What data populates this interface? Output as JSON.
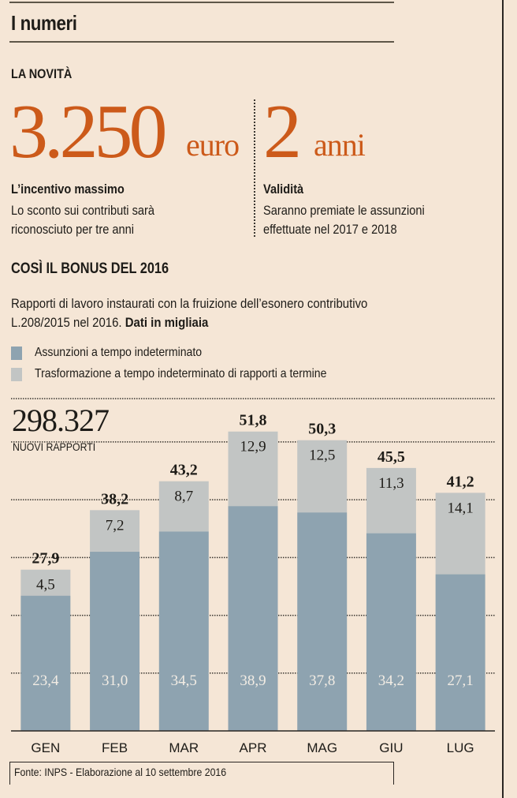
{
  "header": {
    "title": "I numeri",
    "kicker": "LA NOVITÀ"
  },
  "highlights": [
    {
      "value": "3.250",
      "unit": "euro",
      "heading": "L’incentivo massimo",
      "body": [
        "Lo sconto sui contributi sarà",
        "riconosciuto per tre anni"
      ]
    },
    {
      "value": "2",
      "unit": "anni",
      "heading": "Validità",
      "body": [
        "Saranno premiate le assunzioni",
        "effettuate nel 2017 e 2018"
      ]
    }
  ],
  "section": {
    "title": "COSÌ IL BONUS DEL 2016",
    "desc_line1": "Rapporti di lavoro instaurati con la fruizione dell’esonero contributivo",
    "desc_line2_plain": "L.208/2015 nel 2016. ",
    "desc_line2_bold": "Dati in migliaia"
  },
  "colors": {
    "accent": "#cc5a1a",
    "series1": "#8ea3b0",
    "series2": "#c2c5c4",
    "background": "#f5e6d6"
  },
  "total": {
    "value": "298.327",
    "label": "NUOVI RAPPORTI"
  },
  "source": "Fonte: INPS - Elaborazione al 10 settembre 2016",
  "chart_data": {
    "type": "bar",
    "stacked": true,
    "title": "COSÌ IL BONUS DEL 2016",
    "subtitle": "Rapporti di lavoro instaurati con la fruizione dell’esonero contributivo L.208/2015 nel 2016. Dati in migliaia",
    "categories": [
      "GEN",
      "FEB",
      "MAR",
      "APR",
      "MAG",
      "GIU",
      "LUG"
    ],
    "series": [
      {
        "name": "Assunzioni a tempo indeterminato",
        "color": "#8ea3b0",
        "values": [
          23.4,
          31.0,
          34.5,
          38.9,
          37.8,
          34.2,
          27.1
        ],
        "labels": [
          "23,4",
          "31,0",
          "34,5",
          "38,9",
          "37,8",
          "34,2",
          "27,1"
        ]
      },
      {
        "name": "Trasformazione a tempo indeterminato di rapporti a termine",
        "color": "#c2c5c4",
        "values": [
          4.5,
          7.2,
          8.7,
          12.9,
          12.5,
          11.3,
          14.1
        ],
        "labels": [
          "4,5",
          "7,2",
          "8,7",
          "12,9",
          "12,5",
          "11,3",
          "14,1"
        ]
      }
    ],
    "totals": [
      27.9,
      38.2,
      43.2,
      51.8,
      50.3,
      45.5,
      41.2
    ],
    "total_labels": [
      "27,9",
      "38,2",
      "43,2",
      "51,8",
      "50,3",
      "45,5",
      "41,2"
    ],
    "ylim": [
      0,
      57.5
    ],
    "gridlines": [
      10,
      20,
      30,
      40,
      50
    ],
    "grid": true,
    "legend": "top-left",
    "xlabel": "",
    "ylabel": ""
  }
}
